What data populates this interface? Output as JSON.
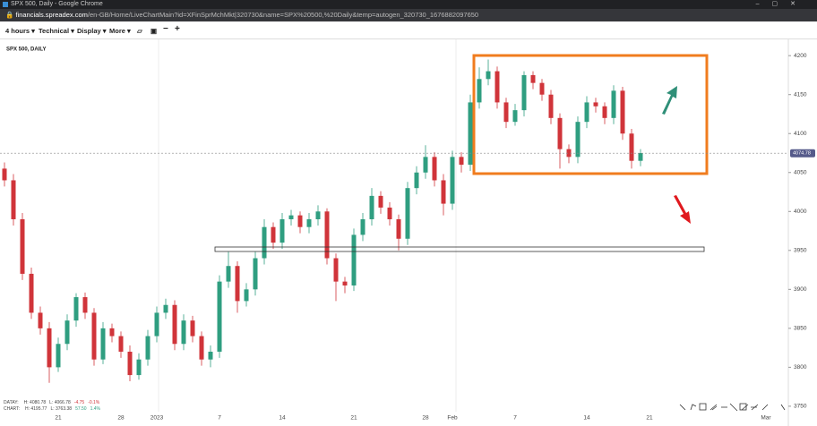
{
  "browser": {
    "window_title": "SPX 500, Daily - Google Chrome",
    "url_host": "financials.spreadex.com",
    "url_path": "/en-GB/Home/LiveChartMain?id=XFinSprMchMkt|320730&name=SPX%20500,%20Daily&temp=autogen_320730_1676882097650"
  },
  "toolbar": {
    "items": [
      "4 hours",
      "Technical",
      "Display",
      "More"
    ]
  },
  "stats": {
    "rows": [
      [
        "DATAY:",
        "H: 4080.78",
        "L: 4066.78",
        "-4.75",
        "-0.1%"
      ],
      [
        "CHART:",
        "H: 4195.77",
        "L: 3763.38",
        "57.50",
        "1.4%"
      ]
    ]
  },
  "chart_data": {
    "type": "candlestick",
    "title": "SPX 500, DAILY",
    "categories": [
      null,
      null,
      null,
      null,
      null,
      null,
      "21",
      null,
      null,
      null,
      null,
      null,
      null,
      "28",
      null,
      null,
      null,
      "2023",
      null,
      null,
      null,
      null,
      null,
      null,
      "7",
      null,
      null,
      null,
      null,
      null,
      null,
      "14",
      null,
      null,
      null,
      null,
      null,
      null,
      null,
      "21",
      null,
      null,
      null,
      null,
      null,
      null,
      null,
      "28",
      null,
      null,
      "Feb",
      null,
      null,
      null,
      null,
      null,
      null,
      "7",
      null,
      null,
      null,
      null,
      null,
      null,
      null,
      "14",
      null,
      null,
      null,
      null,
      null,
      null,
      "21",
      null,
      null,
      null,
      null,
      null,
      null,
      null,
      null,
      null,
      null,
      null,
      null,
      "Mar"
    ],
    "open": [
      4055,
      4040,
      3990,
      3920,
      3870,
      3850,
      3800,
      3830,
      3860,
      3890,
      3870,
      3810,
      3850,
      3840,
      3820,
      3790,
      3810,
      3840,
      3870,
      3880,
      3830,
      3860,
      3840,
      3810,
      3820,
      3910,
      3930,
      3885,
      3900,
      3940,
      3980,
      3960,
      3990,
      3995,
      3980,
      3990,
      4000,
      3940,
      3910,
      3905,
      3970,
      3990,
      4020,
      4005,
      3990,
      3965,
      4030,
      4050,
      4070,
      4040,
      4010,
      4070,
      4060,
      4140,
      4170,
      4180,
      4140,
      4115,
      4130,
      4175,
      4165,
      4150,
      4120,
      4080,
      4070,
      4115,
      4140,
      4135,
      4120,
      4155,
      4100,
      4065,
      null,
      null,
      null,
      null,
      null,
      null,
      null,
      null,
      null,
      null,
      null,
      null,
      null,
      null
    ],
    "high": [
      4063,
      4048,
      3998,
      3928,
      3878,
      3858,
      3838,
      3868,
      3895,
      3896,
      3876,
      3858,
      3856,
      3846,
      3828,
      3818,
      3848,
      3878,
      3888,
      3886,
      3868,
      3866,
      3846,
      3828,
      3918,
      3948,
      3936,
      3908,
      3948,
      3990,
      3986,
      3998,
      4002,
      4000,
      3998,
      4008,
      4004,
      3946,
      3916,
      3978,
      3998,
      4030,
      4026,
      4012,
      3996,
      4038,
      4058,
      4085,
      4076,
      4048,
      4078,
      4076,
      4150,
      4185,
      4195,
      4186,
      4146,
      4138,
      4180,
      4180,
      4170,
      4156,
      4126,
      4086,
      4122,
      4148,
      4146,
      4140,
      4162,
      4160,
      4106,
      4080,
      null,
      null,
      null,
      null,
      null,
      null,
      null,
      null,
      null,
      null,
      null,
      null,
      null,
      null
    ],
    "low": [
      4032,
      3982,
      3912,
      3862,
      3842,
      3780,
      3794,
      3822,
      3852,
      3862,
      3802,
      3804,
      3832,
      3812,
      3782,
      3784,
      3802,
      3832,
      3862,
      3822,
      3822,
      3832,
      3802,
      3800,
      3812,
      3902,
      3870,
      3878,
      3892,
      3932,
      3952,
      3952,
      3982,
      3972,
      3972,
      3982,
      3932,
      3885,
      3895,
      3898,
      3962,
      3982,
      3997,
      3982,
      3950,
      3957,
      4022,
      4042,
      4032,
      3995,
      4002,
      4050,
      4052,
      4132,
      4162,
      4132,
      4107,
      4110,
      4122,
      4157,
      4142,
      4112,
      4055,
      4062,
      4062,
      4107,
      4127,
      4112,
      4112,
      4092,
      4055,
      4058,
      null,
      null,
      null,
      null,
      null,
      null,
      null,
      null,
      null,
      null,
      null,
      null,
      null,
      null
    ],
    "close": [
      4040,
      3990,
      3920,
      3870,
      3850,
      3800,
      3830,
      3860,
      3890,
      3870,
      3810,
      3850,
      3840,
      3820,
      3790,
      3810,
      3840,
      3870,
      3880,
      3830,
      3860,
      3840,
      3810,
      3820,
      3910,
      3930,
      3885,
      3900,
      3940,
      3980,
      3960,
      3990,
      3995,
      3980,
      3990,
      4000,
      3940,
      3910,
      3905,
      3970,
      3990,
      4020,
      4005,
      3990,
      3965,
      4030,
      4050,
      4070,
      4040,
      4010,
      4070,
      4060,
      4140,
      4170,
      4180,
      4140,
      4115,
      4130,
      4175,
      4165,
      4150,
      4120,
      4080,
      4070,
      4115,
      4140,
      4135,
      4120,
      4155,
      4100,
      4065,
      4075,
      null,
      null,
      null,
      null,
      null,
      null,
      null,
      null,
      null,
      null,
      null,
      null,
      null,
      null
    ],
    "up_color": "#2f9e80",
    "down_color": "#d0343a",
    "ylim": [
      3743,
      4214
    ],
    "yticks": [
      3750,
      3800,
      3850,
      3900,
      3950,
      4000,
      4050,
      4100,
      4150,
      4200
    ],
    "last_price": 4074.78
  }
}
